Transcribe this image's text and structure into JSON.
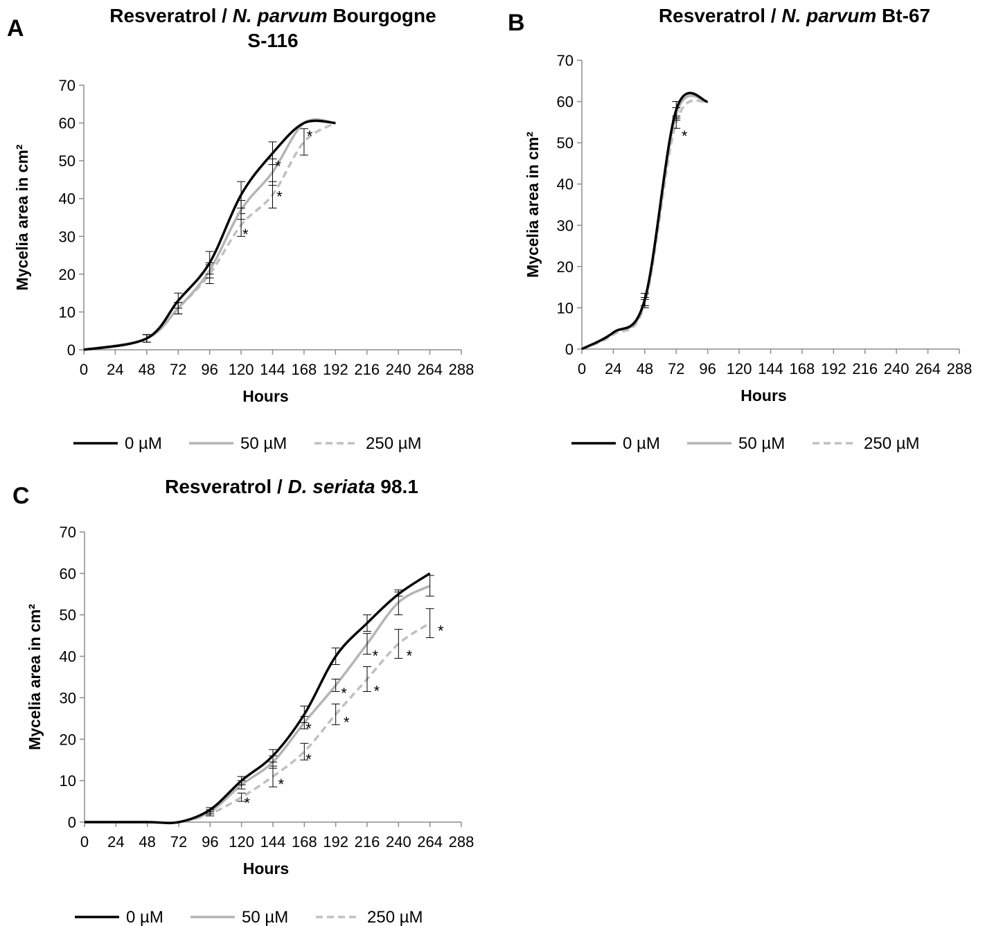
{
  "chart_data": [
    {
      "panel": "A",
      "type": "line",
      "title": [
        "Resveratrol / ",
        "N. parvum",
        " Bourgogne"
      ],
      "title_line2": "S-116",
      "xlabel": "Hours",
      "ylabel": "Mycelia area in cm²",
      "xlim": [
        0,
        288
      ],
      "ylim": [
        0,
        70
      ],
      "xticks": [
        "0",
        "24",
        "48",
        "72",
        "96",
        "120",
        "144",
        "168",
        "192",
        "216",
        "240",
        "264",
        "288"
      ],
      "yticks": [
        "0",
        "10",
        "20",
        "30",
        "40",
        "50",
        "60",
        "70"
      ],
      "legend_placement": "bottom",
      "series": [
        {
          "name": "0 µM",
          "color": "#000000",
          "dash": "none",
          "x": [
            0,
            48,
            72,
            96,
            120,
            144,
            168,
            192
          ],
          "y": [
            0,
            3,
            13,
            23,
            41,
            52,
            60,
            60
          ],
          "err": [
            0,
            1,
            2,
            3,
            3.5,
            3,
            0,
            0
          ]
        },
        {
          "name": "50 µM",
          "color": "#b4b4b4",
          "dash": "none",
          "x": [
            0,
            48,
            72,
            96,
            120,
            144,
            168,
            192
          ],
          "y": [
            0,
            3,
            11,
            21,
            37,
            47,
            60,
            60
          ],
          "err": [
            0,
            1,
            1.5,
            2,
            2.5,
            3.5,
            0,
            0
          ]
        },
        {
          "name": "250 µM",
          "color": "#c0c0c0",
          "dash": "dash",
          "x": [
            0,
            48,
            72,
            96,
            120,
            144,
            168,
            192
          ],
          "y": [
            0,
            3,
            11,
            20,
            33,
            41,
            55,
            60
          ],
          "err": [
            0,
            1,
            1.5,
            2.5,
            3,
            3.5,
            3.5,
            0
          ]
        }
      ],
      "annotations": [
        {
          "text": "*",
          "x": 146,
          "y": 49
        },
        {
          "text": "*",
          "x": 147,
          "y": 41
        },
        {
          "text": "*",
          "x": 121,
          "y": 31
        },
        {
          "text": "*",
          "x": 170,
          "y": 57
        }
      ]
    },
    {
      "panel": "B",
      "type": "line",
      "title": [
        "Resveratrol / ",
        "N. parvum",
        " Bt-67"
      ],
      "title_line2": "",
      "xlabel": "Hours",
      "ylabel": "Mycelia area in cm²",
      "xlim": [
        0,
        288
      ],
      "ylim": [
        0,
        70
      ],
      "xticks": [
        "0",
        "24",
        "48",
        "72",
        "96",
        "120",
        "144",
        "168",
        "192",
        "216",
        "240",
        "264",
        "288"
      ],
      "yticks": [
        "0",
        "10",
        "20",
        "30",
        "40",
        "50",
        "60",
        "70"
      ],
      "legend_placement": "bottom",
      "series": [
        {
          "name": "0 µM",
          "color": "#000000",
          "dash": "none",
          "x": [
            0,
            24,
            48,
            72,
            96
          ],
          "y": [
            0,
            4,
            12,
            58,
            60
          ],
          "err": [
            0,
            0,
            1.5,
            2,
            0
          ]
        },
        {
          "name": "50 µM",
          "color": "#b4b4b4",
          "dash": "none",
          "x": [
            0,
            24,
            48,
            72,
            96
          ],
          "y": [
            0,
            4,
            11.5,
            57,
            60
          ],
          "err": [
            0,
            0,
            1,
            1.5,
            0
          ]
        },
        {
          "name": "250 µM",
          "color": "#c0c0c0",
          "dash": "dash",
          "x": [
            0,
            24,
            48,
            72,
            96
          ],
          "y": [
            0,
            3.5,
            11,
            55,
            60
          ],
          "err": [
            0,
            0,
            1,
            1.5,
            0
          ]
        }
      ],
      "annotations": [
        {
          "text": "*",
          "x": 76,
          "y": 52
        }
      ]
    },
    {
      "panel": "C",
      "type": "line",
      "title": [
        "Resveratrol / ",
        "D. seriata",
        " 98.1"
      ],
      "title_line2": "",
      "xlabel": "Hours",
      "ylabel": "Mycelia area in cm²",
      "xlim": [
        0,
        288
      ],
      "ylim": [
        0,
        70
      ],
      "xticks": [
        "0",
        "24",
        "48",
        "72",
        "96",
        "120",
        "144",
        "168",
        "192",
        "216",
        "240",
        "264",
        "288"
      ],
      "yticks": [
        "0",
        "10",
        "20",
        "30",
        "40",
        "50",
        "60",
        "70"
      ],
      "legend_placement": "bottom",
      "series": [
        {
          "name": "0 µM",
          "color": "#000000",
          "dash": "none",
          "x": [
            0,
            48,
            72,
            96,
            120,
            144,
            168,
            192,
            216,
            240,
            264
          ],
          "y": [
            0,
            0,
            0,
            3,
            10,
            16,
            26,
            40,
            48,
            55,
            60
          ],
          "err": [
            0,
            0,
            0,
            0.5,
            1,
            1.5,
            2,
            2,
            2,
            0.5,
            0
          ]
        },
        {
          "name": "50 µM",
          "color": "#b4b4b4",
          "dash": "none",
          "x": [
            0,
            48,
            72,
            96,
            120,
            144,
            168,
            192,
            216,
            240,
            264
          ],
          "y": [
            0,
            0,
            0,
            2.5,
            9,
            14.5,
            24,
            33,
            43,
            53,
            57
          ],
          "err": [
            0,
            0,
            0,
            0.5,
            1,
            1.5,
            1.5,
            1.5,
            2.5,
            3,
            2.5
          ]
        },
        {
          "name": "250 µM",
          "color": "#c0c0c0",
          "dash": "dash",
          "x": [
            0,
            48,
            72,
            96,
            120,
            144,
            168,
            192,
            216,
            240,
            264
          ],
          "y": [
            0,
            0,
            0,
            2,
            6,
            11,
            17,
            26,
            34.5,
            43,
            48
          ],
          "err": [
            0,
            0,
            0,
            0.5,
            1,
            2.5,
            2,
            2.5,
            3,
            3.5,
            3.5
          ]
        }
      ],
      "annotations": [
        {
          "text": "*",
          "x": 122,
          "y": 5
        },
        {
          "text": "*",
          "x": 148,
          "y": 9.5
        },
        {
          "text": "*",
          "x": 169,
          "y": 23
        },
        {
          "text": "*",
          "x": 169,
          "y": 15.5
        },
        {
          "text": "*",
          "x": 196,
          "y": 31.5
        },
        {
          "text": "*",
          "x": 198,
          "y": 24.5
        },
        {
          "text": "*",
          "x": 220,
          "y": 40.5
        },
        {
          "text": "*",
          "x": 221,
          "y": 32
        },
        {
          "text": "*",
          "x": 246,
          "y": 40.5
        },
        {
          "text": "*",
          "x": 270,
          "y": 46.5
        }
      ]
    }
  ]
}
